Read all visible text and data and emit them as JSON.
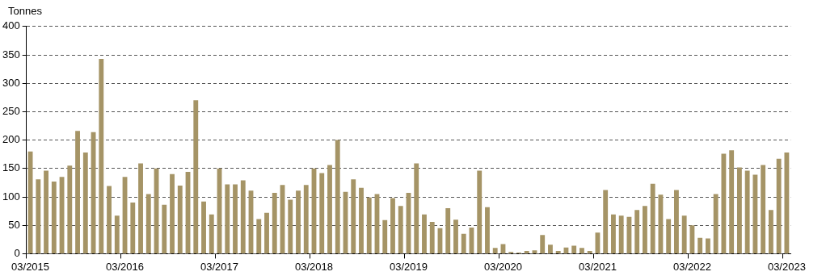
{
  "chart_data": {
    "type": "bar",
    "ylabel": "Tonnes",
    "categories": [
      "03/2015",
      null,
      null,
      null,
      null,
      null,
      null,
      null,
      null,
      null,
      null,
      null,
      "03/2016",
      null,
      null,
      null,
      null,
      null,
      null,
      null,
      null,
      null,
      null,
      null,
      "03/2017",
      null,
      null,
      null,
      null,
      null,
      null,
      null,
      null,
      null,
      null,
      null,
      "03/2018",
      null,
      null,
      null,
      null,
      null,
      null,
      null,
      null,
      null,
      null,
      null,
      "03/2019",
      null,
      null,
      null,
      null,
      null,
      null,
      null,
      null,
      null,
      null,
      null,
      "03/2020",
      null,
      null,
      null,
      null,
      null,
      null,
      null,
      null,
      null,
      null,
      null,
      "03/2021",
      null,
      null,
      null,
      null,
      null,
      null,
      null,
      null,
      null,
      null,
      null,
      "03/2022",
      null,
      null,
      null,
      null,
      null,
      null,
      null,
      null,
      null,
      null,
      null,
      "03/2023"
    ],
    "values": [
      180,
      131,
      146,
      127,
      135,
      155,
      216,
      178,
      214,
      343,
      119,
      67,
      135,
      90,
      159,
      105,
      150,
      86,
      140,
      120,
      144,
      270,
      92,
      69,
      150,
      122,
      122,
      129,
      111,
      61,
      72,
      107,
      121,
      95,
      111,
      121,
      150,
      142,
      156,
      200,
      109,
      131,
      116,
      99,
      105,
      59,
      98,
      84,
      107,
      159,
      69,
      56,
      45,
      80,
      60,
      35,
      46,
      146,
      82,
      10,
      17,
      3,
      2,
      5,
      6,
      33,
      16,
      5,
      11,
      14,
      10,
      5,
      37,
      112,
      69,
      67,
      65,
      77,
      84,
      123,
      104,
      61,
      112,
      67,
      50,
      28,
      27,
      105,
      176,
      182,
      152,
      146,
      139,
      156,
      77,
      167,
      178
    ],
    "color": "#a59466",
    "ylim": [
      0,
      400
    ],
    "yticks": [
      0,
      50,
      100,
      150,
      200,
      250,
      300,
      350,
      400
    ],
    "grid": "y"
  }
}
